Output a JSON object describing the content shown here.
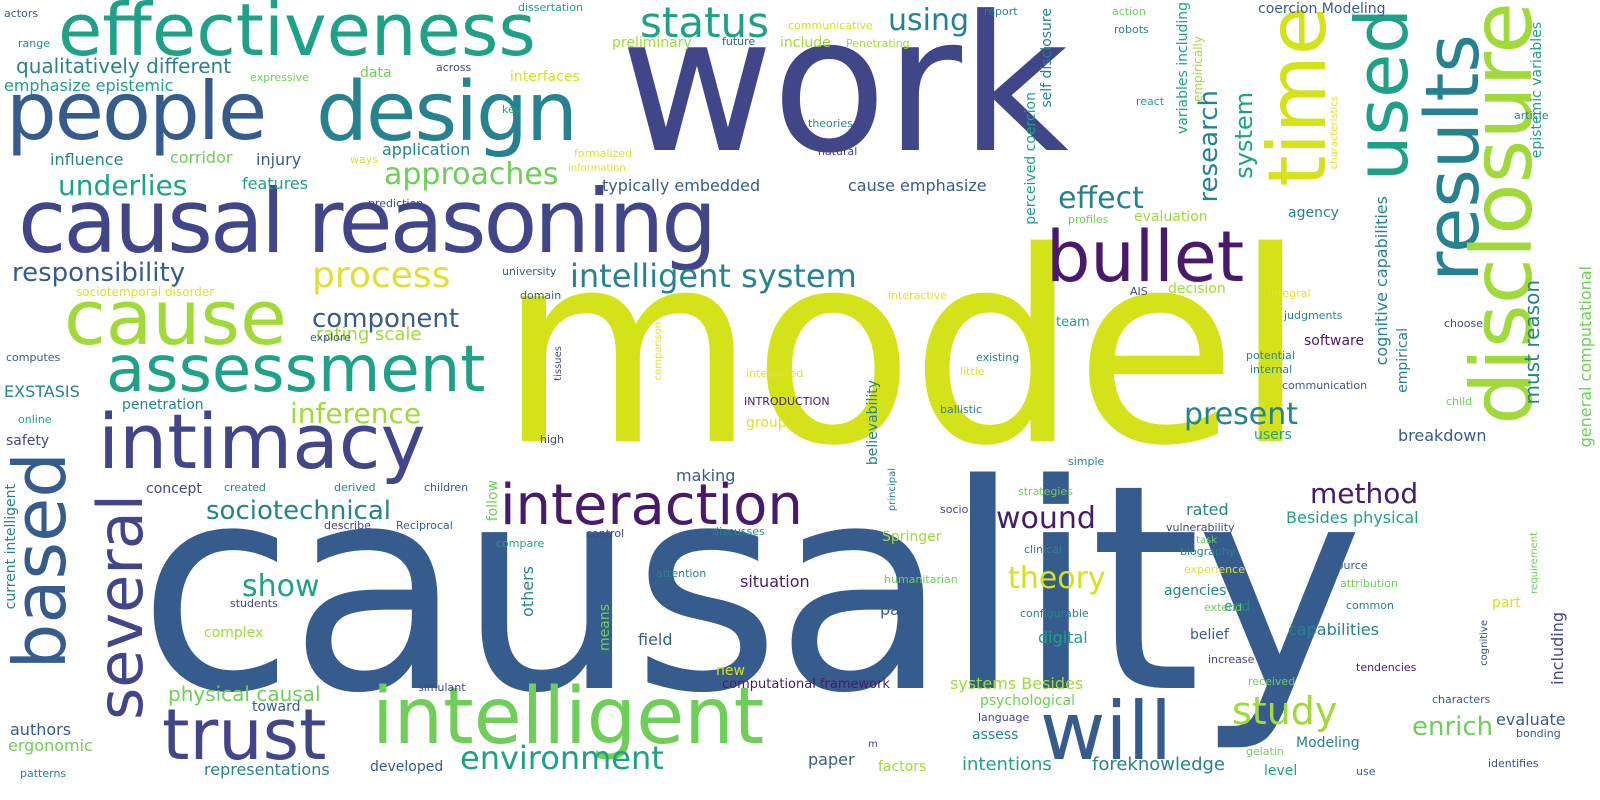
{
  "title": "word cloud",
  "palette": {
    "yellow": "#d4e21a",
    "lime": "#a0da39",
    "green": "#6ece58",
    "teal": "#1fa188",
    "cyan": "#26828e",
    "blue": "#365c8d",
    "indigo": "#404688",
    "purple": "#481a6c",
    "gold": "#e0e030"
  },
  "words": [
    "model",
    "causality",
    "work",
    "effectiveness",
    "people",
    "design",
    "causal reasoning",
    "cause",
    "assessment",
    "intimacy",
    "based",
    "several",
    "trust",
    "intelligent",
    "interaction",
    "will",
    "time",
    "used",
    "results",
    "disclosure",
    "bullet",
    "status",
    "using",
    "process",
    "intelligent system",
    "approaches",
    "qualitatively different",
    "emphasize epistemic",
    "underlies",
    "influence",
    "corridor",
    "injury",
    "application",
    "responsibility",
    "component",
    "rating scale",
    "inference",
    "present",
    "effect",
    "research",
    "system",
    "method",
    "wound",
    "theory",
    "study",
    "enrich",
    "environment",
    "sociotechnical",
    "show",
    "physical causal",
    "authors",
    "ergonomic",
    "representations",
    "developed",
    "paper",
    "factors",
    "intentions",
    "foreknowledge",
    "level",
    "Modeling",
    "evaluate",
    "including",
    "epistemic variables",
    "general computational",
    "cognitive capabilities",
    "must reason",
    "empirical",
    "breakdown",
    "users",
    "rated",
    "Besides physical",
    "agencies",
    "capabilities",
    "digital",
    "belief",
    "end",
    "part",
    "situation",
    "panel",
    "field",
    "systems Besides",
    "psychological",
    "assess",
    "computational framework",
    "new",
    "making",
    "follow",
    "others",
    "means",
    "Springer",
    "believability",
    "cause emphasize",
    "typically embedded",
    "features",
    "perceived coercion",
    "self disclosure",
    "variables including",
    "empirically",
    "coercion Modeling",
    "software",
    "team",
    "decision",
    "evaluation",
    "agency",
    "interfaces",
    "data",
    "preliminary",
    "include",
    "safety",
    "EXSTASIS",
    "penetration",
    "concept",
    "current intelligent",
    "complex",
    "toward",
    "dissertation",
    "communicative",
    "report",
    "action",
    "robots",
    "actors",
    "range",
    "expressive",
    "future",
    "Penetrating",
    "across",
    "key",
    "react",
    "article",
    "theories",
    "natural",
    "ways",
    "formalized",
    "information",
    "prediction",
    "university",
    "domain",
    "sociotemporal disorder",
    "interactive",
    "AIS",
    "integral",
    "explore",
    "computes",
    "online",
    "existing",
    "potential",
    "internal",
    "communication",
    "little",
    "integrated",
    "INTRODUCTION",
    "comparison",
    "tissues",
    "ballistic",
    "group",
    "high",
    "children",
    "created",
    "derived",
    "describe",
    "Reciprocal",
    "compare",
    "control",
    "discusses",
    "socio",
    "principal",
    "clinical",
    "vulnerability",
    "task",
    "biography",
    "students",
    "attention",
    "experience",
    "humanitarian",
    "configurable",
    "resource",
    "attribution",
    "common",
    "extend",
    "simulant",
    "received",
    "increase",
    "tendencies",
    "language",
    "gelatin",
    "characters",
    "bonding",
    "identifies",
    "patterns",
    "use",
    "child",
    "choose",
    "judgments",
    "profiles",
    "strategies",
    "simple",
    "requirement",
    "cognitive",
    "characteristics",
    "m"
  ]
}
